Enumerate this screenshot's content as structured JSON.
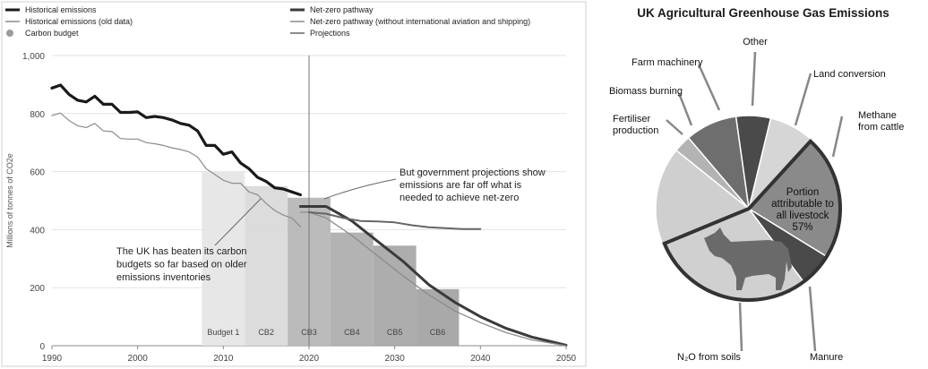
{
  "chart_data": [
    {
      "type": "line",
      "xlim": [
        1990,
        2050
      ],
      "ylim": [
        0,
        1000
      ],
      "ylabel": "Millions of tonnes of CO2e",
      "x_ticks": [
        "1990",
        "2000",
        "2010",
        "2020",
        "2030",
        "2040",
        "2050"
      ],
      "y_ticks": [
        "0",
        "200",
        "400",
        "600",
        "800",
        "1,000"
      ],
      "grid": true,
      "legend_position": "top",
      "legend": [
        {
          "label": "Historical emissions",
          "color": "#1a1a1a",
          "style": "line-thick"
        },
        {
          "label": "Historical emissions (old data)",
          "color": "#8c8c8c",
          "style": "line"
        },
        {
          "label": "Carbon budget",
          "color": "#9a9a9a",
          "style": "dot"
        },
        {
          "label": "Net-zero pathway",
          "color": "#3a3a3a",
          "style": "line-thick"
        },
        {
          "label": "Net-zero pathway (without international aviation and shipping)",
          "color": "#8c8c8c",
          "style": "line"
        },
        {
          "label": "Projections",
          "color": "#666666",
          "style": "line"
        }
      ],
      "series": [
        {
          "name": "Historical emissions",
          "x": [
            1990,
            1991,
            1992,
            1993,
            1994,
            1995,
            1996,
            1997,
            1998,
            1999,
            2000,
            2001,
            2002,
            2003,
            2004,
            2005,
            2006,
            2007,
            2008,
            2009,
            2010,
            2011,
            2012,
            2013,
            2014,
            2015,
            2016,
            2017,
            2018,
            2019
          ],
          "values": [
            888,
            898,
            866,
            846,
            840,
            860,
            832,
            832,
            804,
            804,
            806,
            786,
            790,
            786,
            778,
            766,
            760,
            740,
            690,
            690,
            660,
            668,
            630,
            610,
            580,
            566,
            544,
            540,
            530,
            520
          ]
        },
        {
          "name": "Historical emissions (old data)",
          "x": [
            1990,
            1991,
            1992,
            1993,
            1994,
            1995,
            1996,
            1997,
            1998,
            1999,
            2000,
            2001,
            2002,
            2003,
            2004,
            2005,
            2006,
            2007,
            2008,
            2009,
            2010,
            2011,
            2012,
            2013,
            2014,
            2015,
            2016,
            2017,
            2018,
            2019
          ],
          "values": [
            793,
            802,
            776,
            758,
            752,
            766,
            740,
            738,
            714,
            712,
            712,
            700,
            696,
            690,
            682,
            676,
            668,
            650,
            610,
            590,
            570,
            560,
            560,
            530,
            520,
            490,
            466,
            450,
            440,
            410
          ]
        },
        {
          "name": "Net-zero pathway",
          "x": [
            2019,
            2020,
            2022,
            2025,
            2028,
            2031,
            2034,
            2037,
            2040,
            2043,
            2046,
            2050
          ],
          "values": [
            480,
            480,
            480,
            430,
            360,
            290,
            210,
            150,
            100,
            60,
            30,
            2
          ]
        },
        {
          "name": "Net-zero pathway (without international aviation and shipping)",
          "x": [
            2019,
            2020,
            2022,
            2025,
            2028,
            2031,
            2034,
            2037,
            2040,
            2043,
            2046,
            2050
          ],
          "values": [
            460,
            460,
            440,
            380,
            310,
            240,
            175,
            120,
            80,
            45,
            20,
            0
          ]
        },
        {
          "name": "Projections",
          "x": [
            2020,
            2022,
            2024,
            2026,
            2028,
            2030,
            2032,
            2034,
            2036,
            2038,
            2040
          ],
          "values": [
            460,
            455,
            440,
            430,
            428,
            425,
            415,
            408,
            405,
            402,
            402
          ]
        }
      ],
      "carbon_budgets": [
        {
          "label": "Budget 1",
          "start": 2008,
          "end": 2012,
          "value": 600
        },
        {
          "label": "CB2",
          "start": 2013,
          "end": 2017,
          "value": 550
        },
        {
          "label": "CB3",
          "start": 2018,
          "end": 2022,
          "value": 510
        },
        {
          "label": "CB4",
          "start": 2023,
          "end": 2027,
          "value": 390
        },
        {
          "label": "CB5",
          "start": 2028,
          "end": 2032,
          "value": 345
        },
        {
          "label": "CB6",
          "start": 2033,
          "end": 2037,
          "value": 195
        }
      ],
      "annotations": [
        {
          "lines": [
            "The UK has beaten its carbon",
            "budgets so far based on older",
            "emissions inventories"
          ]
        },
        {
          "lines": [
            "But government projections show",
            "emissions are far off what is",
            "needed to achieve net-zero"
          ]
        }
      ]
    },
    {
      "type": "pie",
      "title": "UK Agricultural Greenhouse Gas Emissions",
      "center_label": [
        "Portion",
        "attributable to",
        "all livestock",
        "57%"
      ],
      "slices": [
        {
          "label": "Other",
          "value": 6,
          "color": "#4a4a4a"
        },
        {
          "label": "Land conversion",
          "value": 8,
          "color": "#d6d6d6"
        },
        {
          "label": "Methane from cattle",
          "value": 22,
          "color": "#8a8a8a"
        },
        {
          "label": "Manure",
          "value": 6,
          "color": "#4a4a4a"
        },
        {
          "label": "N2O from soils",
          "value": 29,
          "color": "#d0d0d0"
        },
        {
          "label": "Fertiliser production",
          "value": 17,
          "color": "#cfcfcf"
        },
        {
          "label": "Biomass burning",
          "value": 3,
          "color": "#b3b3b3"
        },
        {
          "label": "Farm machinery",
          "value": 9,
          "color": "#6e6e6e"
        }
      ],
      "callouts": [
        {
          "lines": [
            "Other"
          ]
        },
        {
          "lines": [
            "Farm machinery"
          ]
        },
        {
          "lines": [
            "Land conversion"
          ]
        },
        {
          "lines": [
            "Biomass burning"
          ]
        },
        {
          "lines": [
            "Fertiliser",
            "production"
          ]
        },
        {
          "lines": [
            "Methane",
            "from cattle"
          ]
        },
        {
          "lines": [
            "Manure"
          ]
        },
        {
          "lines": [
            "N₂O from soils"
          ]
        }
      ]
    }
  ]
}
